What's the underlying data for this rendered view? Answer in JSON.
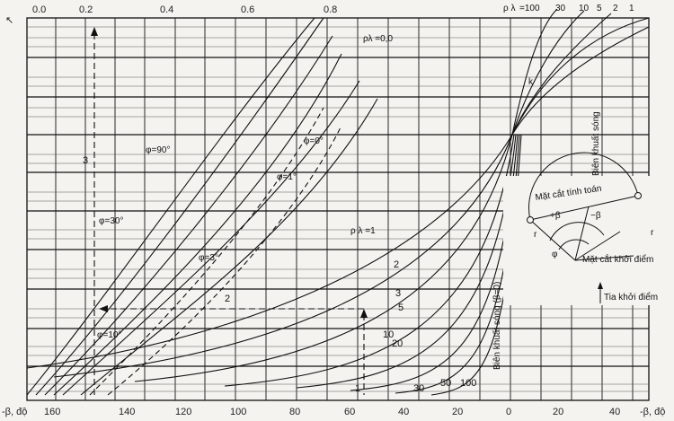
{
  "chart_data": {
    "type": "line",
    "title": "",
    "grid": true,
    "bottom_axis": {
      "label": "-β, độ",
      "ticks": [
        "160",
        "140",
        "120",
        "100",
        "80",
        "60",
        "40",
        "20",
        "0",
        "20",
        "40"
      ],
      "right_label": "-β, độ"
    },
    "top_axis": {
      "ticks": [
        "0.0",
        "0.2",
        "0.4",
        "0.6",
        "0.8"
      ]
    },
    "left_axis": {
      "label": "↖"
    },
    "top_right_scale": {
      "prefix": "ρ λ",
      "ticks": [
        "=100",
        "30",
        "10",
        "5",
        "2",
        "1"
      ]
    },
    "series_labels": [
      {
        "name": "φ=90°"
      },
      {
        "name": "φ=0°"
      },
      {
        "name": "φ=1°"
      },
      {
        "name": "φ=30°"
      },
      {
        "name": "φ=3°"
      },
      {
        "name": "φ=10°"
      },
      {
        "name": "ρ λ =1"
      },
      {
        "name": "ρλ =0,0"
      }
    ],
    "curve_numbers_right": [
      "2",
      "3",
      "5",
      "10",
      "20",
      "30",
      "50",
      "100"
    ],
    "curve_numbers_misc": [
      "1",
      "2",
      "3"
    ],
    "inset": {
      "labels": {
        "bien_khuat_song": "Biên khuất sóng",
        "mat_cat_tinh_toan": "Mặt cắt tính toán",
        "plus_beta": "+β",
        "minus_beta": "−β",
        "phi": "φ",
        "mat_cat_khoi_diem": "Mặt cắt khởi điểm",
        "tia_khoi_diem": "Tia khởi điểm",
        "r1": "r",
        "r2": "r"
      }
    },
    "vertical_label": "Biên khuất sóng (β=0)",
    "side_labels": {
      "k": "k"
    }
  }
}
